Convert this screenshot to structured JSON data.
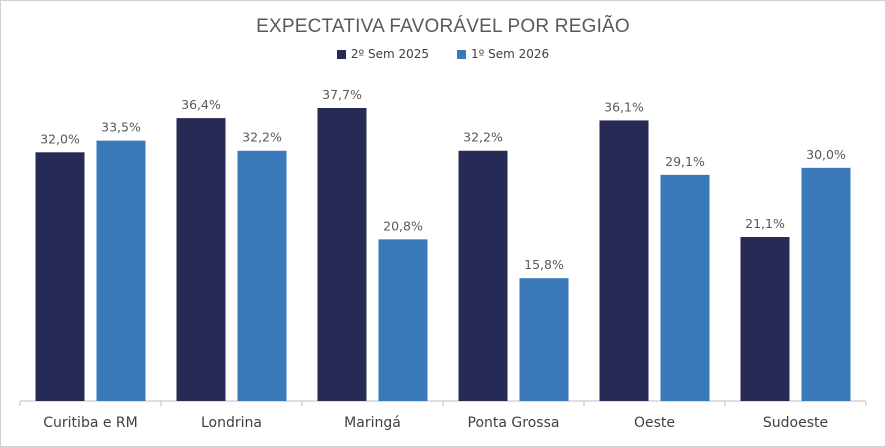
{
  "chart_data": {
    "type": "bar",
    "title": "EXPECTATIVA FAVORÁVEL POR REGIÃO",
    "categories": [
      "Curitiba e RM",
      "Londrina",
      "Maringá",
      "Ponta Grossa",
      "Oeste",
      "Sudoeste"
    ],
    "series": [
      {
        "name": "2º Sem 2025",
        "color": "#262a54",
        "values": [
          32.0,
          36.4,
          37.7,
          32.2,
          36.1,
          21.1
        ],
        "labels": [
          "32,0%",
          "36,4%",
          "37,7%",
          "32,2%",
          "36,1%",
          "21,1%"
        ]
      },
      {
        "name": "1º Sem 2026",
        "color": "#3a7abb",
        "values": [
          33.5,
          32.2,
          20.8,
          15.8,
          29.1,
          30.0
        ],
        "labels": [
          "33,5%",
          "32,2%",
          "20,8%",
          "15,8%",
          "29,1%",
          "30,0%"
        ]
      }
    ],
    "ylim": [
      0,
      40
    ],
    "xlabel": "",
    "ylabel": "",
    "grid": false,
    "legend_position": "top-center"
  }
}
